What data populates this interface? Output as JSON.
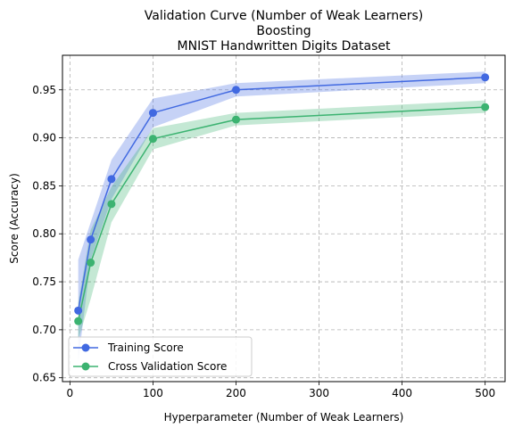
{
  "chart_data": {
    "type": "line",
    "title_lines": [
      "Validation Curve (Number of Weak Learners)",
      "Boosting",
      "MNIST Handwritten Digits Dataset"
    ],
    "xlabel": "Hyperparameter (Number of Weak Learners)",
    "ylabel": "Score (Accuracy)",
    "xlim": [
      -9,
      524
    ],
    "ylim": [
      0.646,
      0.986
    ],
    "xticks": [
      0,
      100,
      200,
      300,
      400,
      500
    ],
    "yticks": [
      0.65,
      0.7,
      0.75,
      0.8,
      0.85,
      0.9,
      0.95
    ],
    "ytick_labels": [
      "0.65",
      "0.70",
      "0.75",
      "0.80",
      "0.85",
      "0.90",
      "0.95"
    ],
    "grid": true,
    "legend_position": "lower-left",
    "x": [
      10,
      25,
      50,
      100,
      200,
      500
    ],
    "series": [
      {
        "name": "Training Score",
        "color": "#4169e1",
        "values": [
          0.72,
          0.794,
          0.857,
          0.926,
          0.95,
          0.963
        ],
        "upper": [
          0.773,
          0.812,
          0.877,
          0.941,
          0.957,
          0.969
        ],
        "lower": [
          0.667,
          0.773,
          0.836,
          0.911,
          0.943,
          0.957
        ]
      },
      {
        "name": "Cross Validation Score",
        "color": "#3cb371",
        "values": [
          0.709,
          0.77,
          0.831,
          0.899,
          0.919,
          0.932
        ],
        "upper": [
          0.728,
          0.804,
          0.849,
          0.91,
          0.926,
          0.939
        ],
        "lower": [
          0.69,
          0.732,
          0.812,
          0.888,
          0.913,
          0.926
        ]
      }
    ]
  }
}
